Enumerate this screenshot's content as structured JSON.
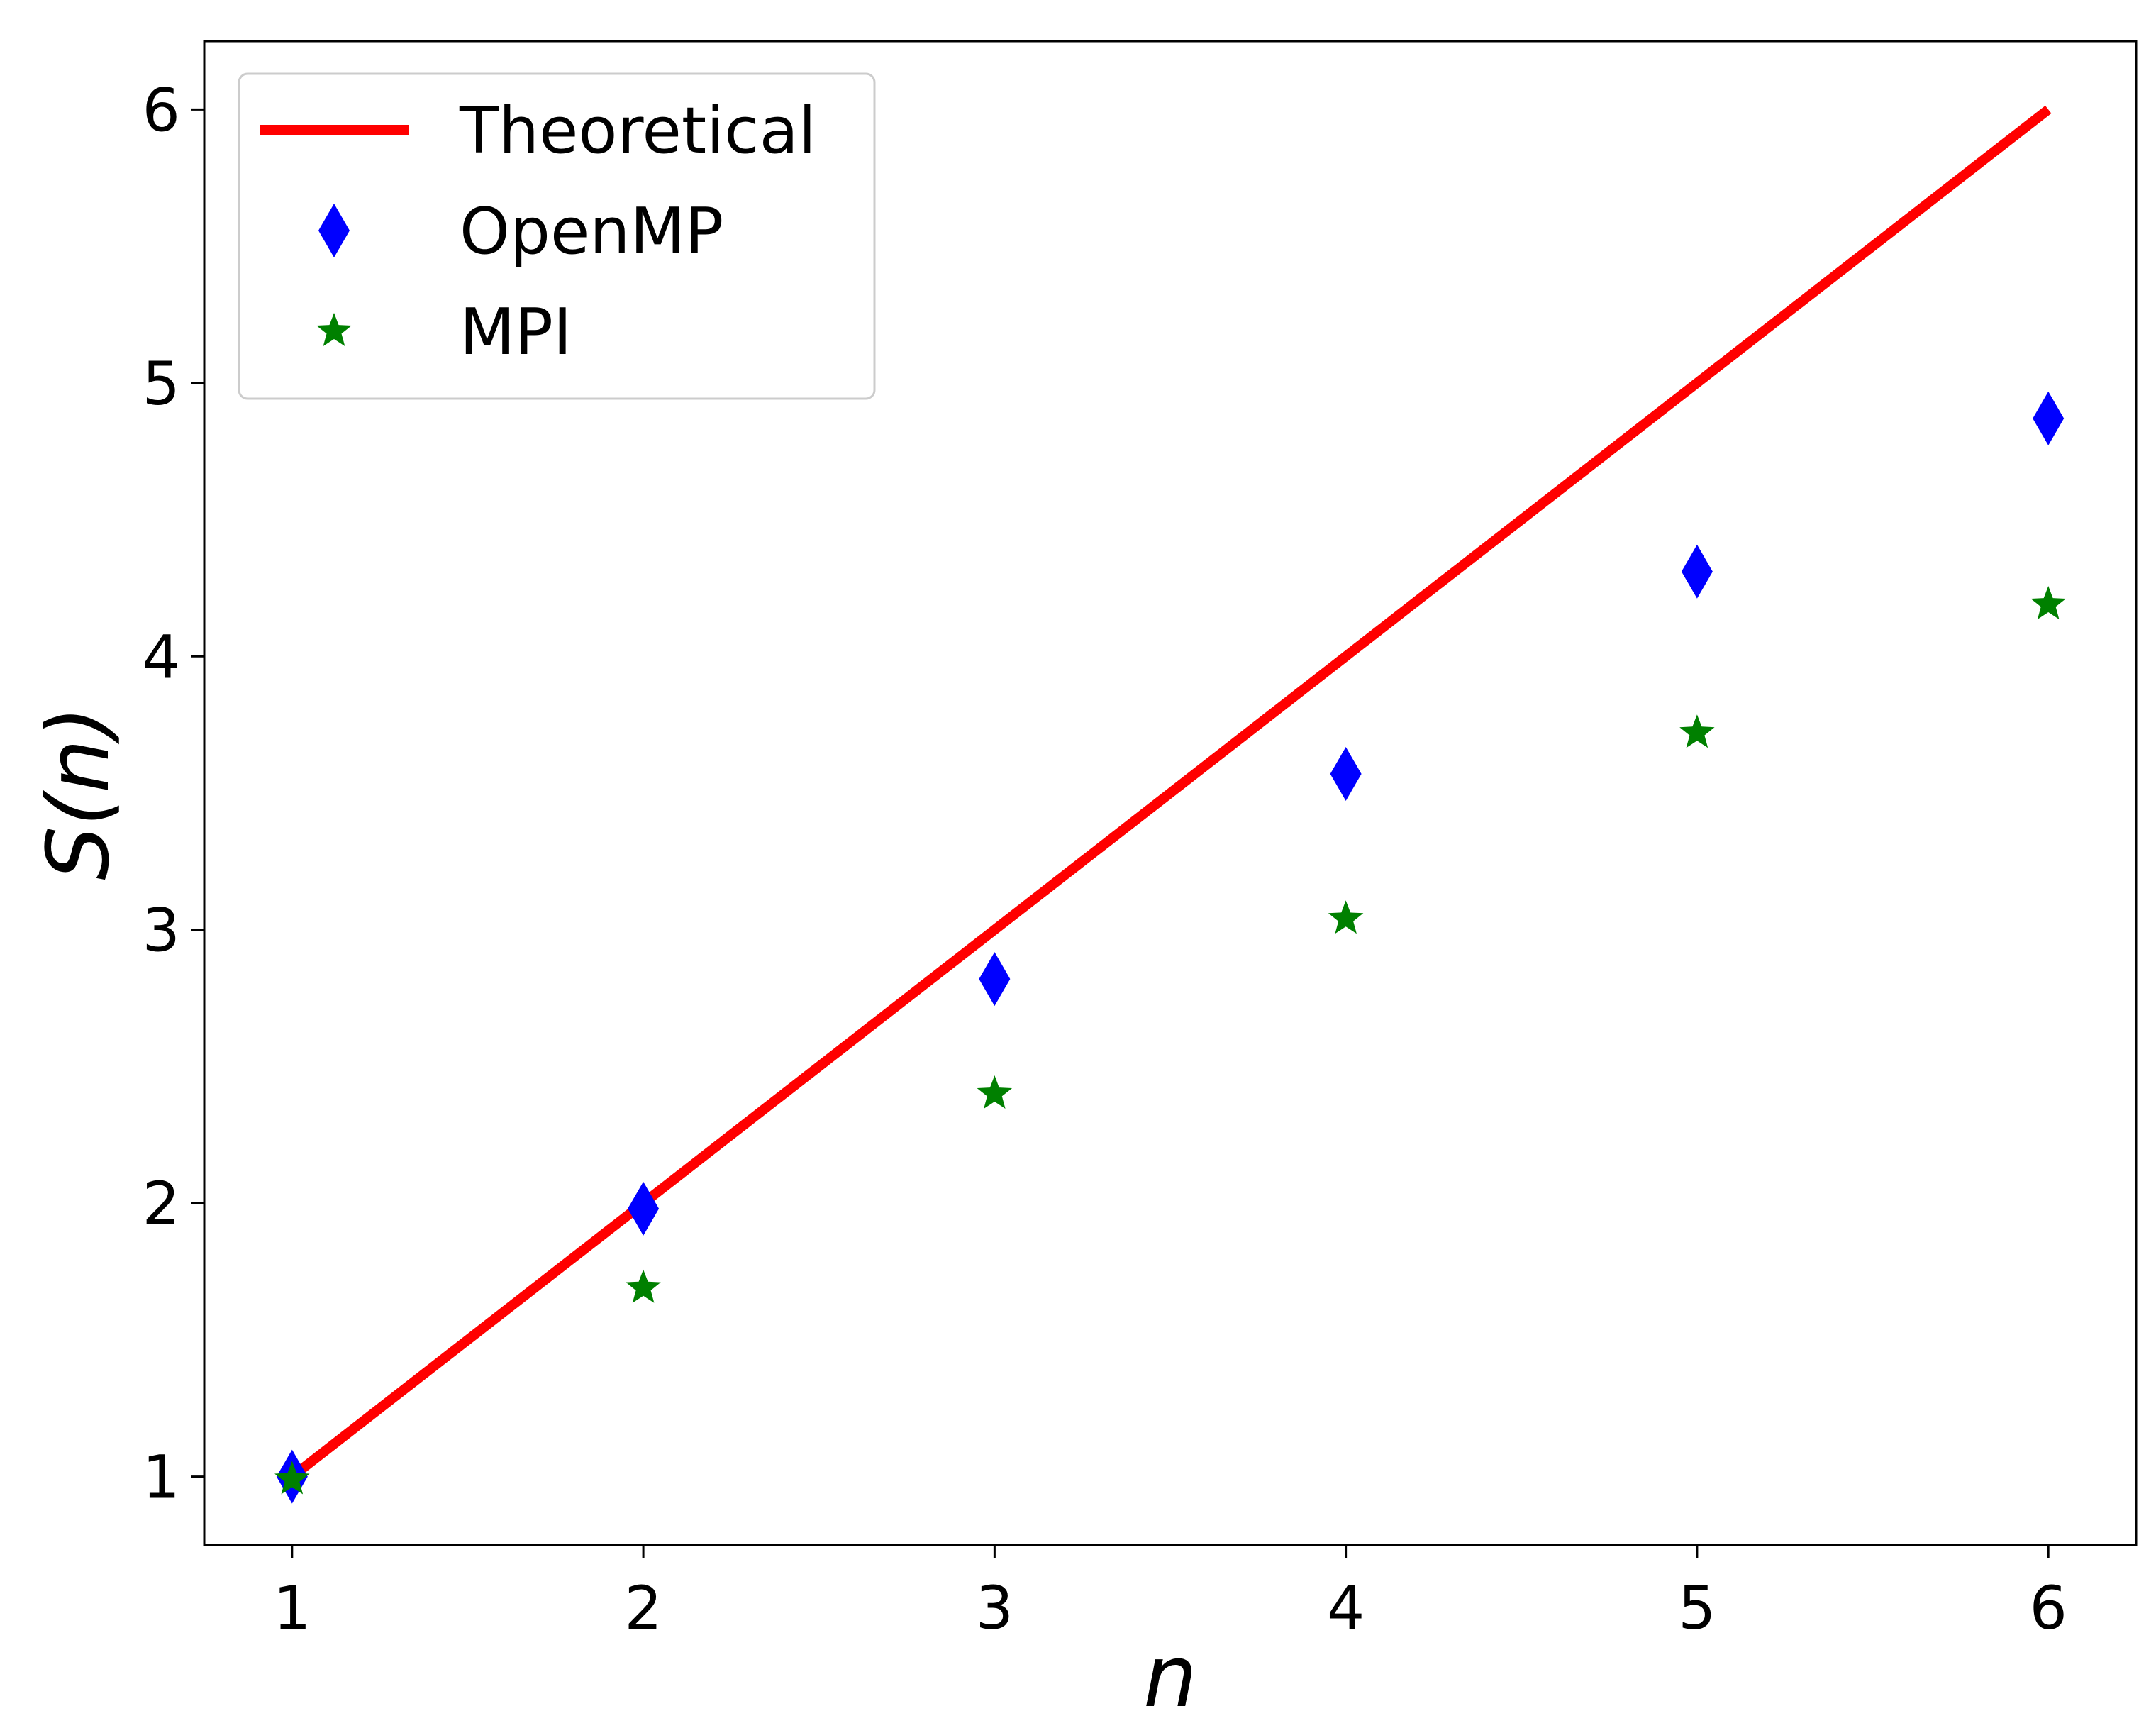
{
  "chart_data": {
    "type": "line",
    "title": "",
    "xlabel": "n",
    "ylabel": "S(n)",
    "xlim": [
      0.75,
      6.25
    ],
    "ylim": [
      0.75,
      6.25
    ],
    "xticks": [
      1,
      2,
      3,
      4,
      5,
      6
    ],
    "yticks": [
      1,
      2,
      3,
      4,
      5,
      6
    ],
    "grid": false,
    "legend_position": "top-left",
    "series": [
      {
        "name": "Theoretical",
        "kind": "line",
        "color": "#ff0000",
        "x": [
          1,
          6
        ],
        "y": [
          1,
          6
        ]
      },
      {
        "name": "OpenMP",
        "kind": "scatter",
        "marker": "diamond",
        "color": "#0000ff",
        "x": [
          1,
          2,
          3,
          4,
          5,
          6
        ],
        "y": [
          1.0,
          1.98,
          2.82,
          3.57,
          4.31,
          4.87
        ]
      },
      {
        "name": "MPI",
        "kind": "scatter",
        "marker": "star",
        "color": "#008000",
        "x": [
          1,
          2,
          3,
          4,
          5,
          6
        ],
        "y": [
          0.99,
          1.69,
          2.4,
          3.04,
          3.72,
          4.19
        ]
      }
    ]
  }
}
